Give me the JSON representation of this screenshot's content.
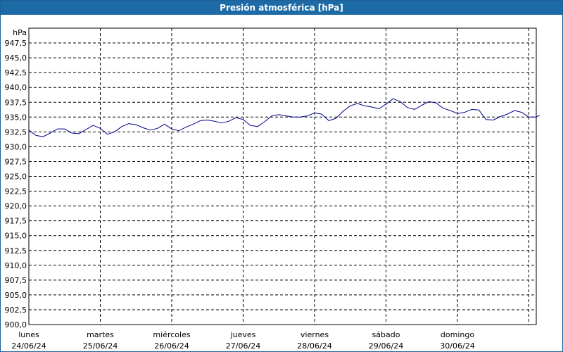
{
  "window": {
    "title": "Presión atmosférica [hPa]"
  },
  "chart_data": {
    "type": "line",
    "title": "Presión atmosférica [hPa]",
    "ylabel": "hPa",
    "ylim": [
      900,
      950
    ],
    "y_tick_labels": [
      "900,0",
      "902,5",
      "905,0",
      "907,5",
      "910,0",
      "912,5",
      "915,0",
      "917,5",
      "920,0",
      "922,5",
      "925,0",
      "927,5",
      "930,0",
      "932,5",
      "935,0",
      "937,5",
      "940,0",
      "942,5",
      "945,0",
      "947,5"
    ],
    "x_tick_labels": [
      {
        "day": "lunes",
        "date": "24/06/24"
      },
      {
        "day": "martes",
        "date": "25/06/24"
      },
      {
        "day": "miércoles",
        "date": "26/06/24"
      },
      {
        "day": "jueves",
        "date": "27/06/24"
      },
      {
        "day": "viernes",
        "date": "28/06/24"
      },
      {
        "day": "sábado",
        "date": "29/06/24"
      },
      {
        "day": "domingo",
        "date": "30/06/24"
      }
    ],
    "grid": true,
    "series": [
      {
        "color": "#00008b",
        "x": [
          0,
          0.1,
          0.2,
          0.3,
          0.4,
          0.5,
          0.6,
          0.7,
          0.8,
          0.9,
          1.0,
          1.1,
          1.2,
          1.3,
          1.4,
          1.5,
          1.6,
          1.7,
          1.8,
          1.9,
          2.0,
          2.1,
          2.2,
          2.3,
          2.4,
          2.5,
          2.6,
          2.7,
          2.8,
          2.9,
          3.0,
          3.1,
          3.2,
          3.3,
          3.4,
          3.5,
          3.6,
          3.7,
          3.8,
          3.9,
          4.0,
          4.1,
          4.2,
          4.3,
          4.4,
          4.5,
          4.6,
          4.7,
          4.8,
          4.9,
          5.0,
          5.1,
          5.2,
          5.3,
          5.4,
          5.5,
          5.6,
          5.7,
          5.8,
          5.9,
          6.0,
          6.1,
          6.2,
          6.3,
          6.4,
          6.5,
          6.6,
          6.7,
          6.8,
          6.9,
          7.0,
          7.1,
          7.15
        ],
        "values": [
          932.8,
          931.9,
          931.7,
          932.3,
          933.0,
          933.0,
          932.3,
          932.2,
          932.9,
          933.6,
          933.1,
          932.1,
          932.5,
          933.4,
          933.9,
          933.7,
          933.2,
          932.8,
          933.1,
          933.8,
          933.0,
          932.7,
          933.3,
          933.8,
          934.4,
          934.5,
          934.3,
          934.0,
          934.3,
          934.9,
          934.6,
          933.6,
          933.4,
          934.2,
          935.2,
          935.4,
          935.2,
          935.0,
          935.0,
          935.2,
          935.7,
          935.5,
          934.4,
          934.8,
          936.0,
          936.9,
          937.3,
          936.9,
          936.7,
          936.4,
          937.2,
          938.1,
          937.6,
          936.6,
          936.3,
          937.0,
          937.6,
          937.4,
          936.5,
          936.1,
          935.6,
          935.8,
          936.3,
          936.2,
          934.6,
          934.5,
          935.1,
          935.5,
          936.1,
          935.8,
          935.0,
          935.0,
          935.3
        ]
      }
    ]
  }
}
